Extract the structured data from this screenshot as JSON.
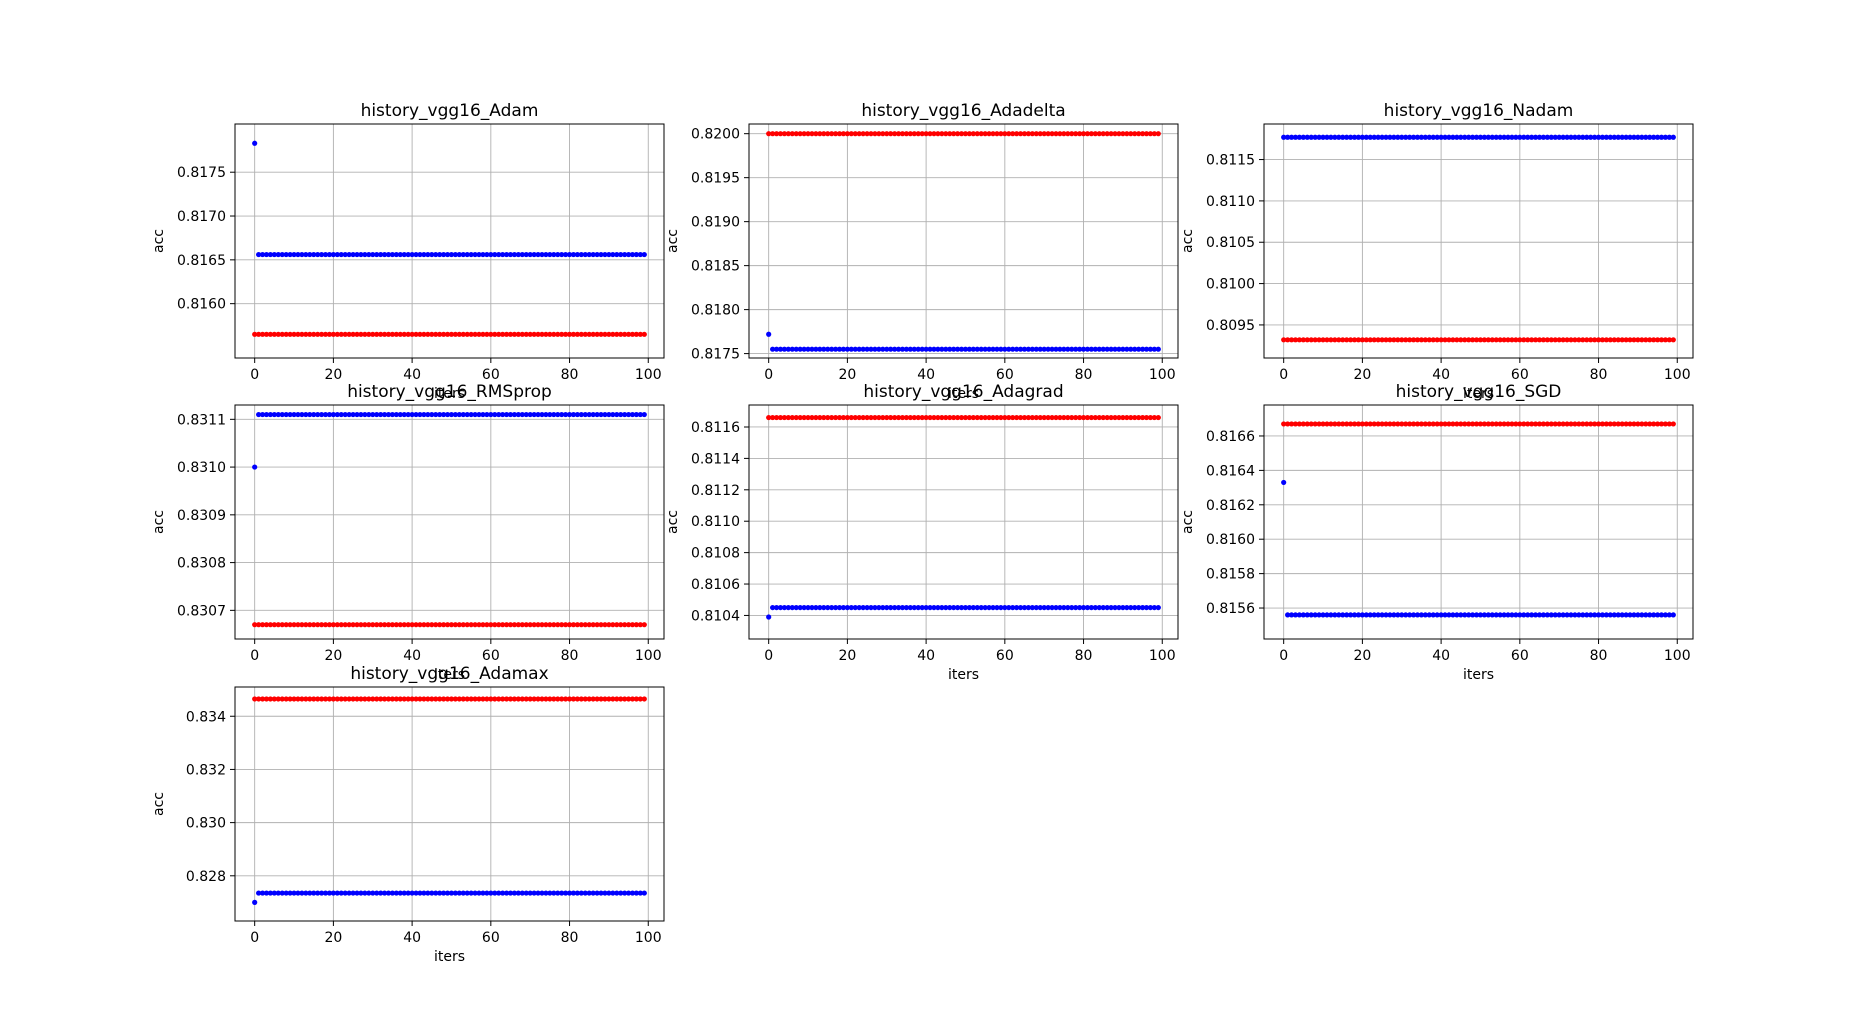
{
  "figure": {
    "colors": {
      "series_a": "#ff0000",
      "series_b": "#0000ff",
      "grid": "#b0b0b0",
      "axes": "#000000"
    }
  },
  "chart_data": [
    {
      "type": "scatter",
      "title": "history_vgg16_Adam",
      "xlabel": "iters",
      "ylabel": "acc",
      "xlim": [
        -5,
        104
      ],
      "ylim": [
        0.81538,
        0.81805
      ],
      "xticks": [
        0,
        20,
        40,
        60,
        80,
        100
      ],
      "xtick_labels": [
        "0",
        "20",
        "40",
        "60",
        "80",
        "100"
      ],
      "yticks": [
        0.816,
        0.8165,
        0.817,
        0.8175
      ],
      "ytick_labels": [
        "0.8160",
        "0.8165",
        "0.8170",
        "0.8175"
      ],
      "grid": true,
      "series": [
        {
          "color": "#ff0000",
          "x_range": [
            0,
            99
          ],
          "constant": 0.81565
        },
        {
          "color": "#0000ff",
          "x_range": [
            0,
            99
          ],
          "first": 0.81783,
          "constant": 0.81656
        }
      ]
    },
    {
      "type": "scatter",
      "title": "history_vgg16_Adadelta",
      "xlabel": "iters",
      "ylabel": "acc",
      "xlim": [
        -5,
        104
      ],
      "ylim": [
        0.81745,
        0.82011
      ],
      "xticks": [
        0,
        20,
        40,
        60,
        80,
        100
      ],
      "xtick_labels": [
        "0",
        "20",
        "40",
        "60",
        "80",
        "100"
      ],
      "yticks": [
        0.8175,
        0.818,
        0.8185,
        0.819,
        0.8195,
        0.82
      ],
      "ytick_labels": [
        "0.8175",
        "0.8180",
        "0.8185",
        "0.8190",
        "0.8195",
        "0.8200"
      ],
      "grid": true,
      "series": [
        {
          "color": "#ff0000",
          "x_range": [
            0,
            99
          ],
          "constant": 0.82
        },
        {
          "color": "#0000ff",
          "x_range": [
            0,
            99
          ],
          "first": 0.81772,
          "constant": 0.81755
        }
      ]
    },
    {
      "type": "scatter",
      "title": "history_vgg16_Nadam",
      "xlabel": "iters",
      "ylabel": "acc",
      "xlim": [
        -5,
        104
      ],
      "ylim": [
        0.8091,
        0.81193
      ],
      "xticks": [
        0,
        20,
        40,
        60,
        80,
        100
      ],
      "xtick_labels": [
        "0",
        "20",
        "40",
        "60",
        "80",
        "100"
      ],
      "yticks": [
        0.8095,
        0.81,
        0.8105,
        0.811,
        0.8115
      ],
      "ytick_labels": [
        "0.8095",
        "0.8100",
        "0.8105",
        "0.8110",
        "0.8115"
      ],
      "grid": true,
      "series": [
        {
          "color": "#ff0000",
          "x_range": [
            0,
            99
          ],
          "constant": 0.80932
        },
        {
          "color": "#0000ff",
          "x_range": [
            0,
            99
          ],
          "constant": 0.81177
        }
      ]
    },
    {
      "type": "scatter",
      "title": "history_vgg16_RMSprop",
      "xlabel": "iters",
      "ylabel": "acc",
      "xlim": [
        -5,
        104
      ],
      "ylim": [
        0.83064,
        0.83113
      ],
      "xticks": [
        0,
        20,
        40,
        60,
        80,
        100
      ],
      "xtick_labels": [
        "0",
        "20",
        "40",
        "60",
        "80",
        "100"
      ],
      "yticks": [
        0.8307,
        0.8308,
        0.8309,
        0.831,
        0.8311
      ],
      "ytick_labels": [
        "0.8307",
        "0.8308",
        "0.8309",
        "0.8310",
        "0.8311"
      ],
      "grid": true,
      "series": [
        {
          "color": "#ff0000",
          "x_range": [
            0,
            99
          ],
          "constant": 0.83067
        },
        {
          "color": "#0000ff",
          "x_range": [
            0,
            99
          ],
          "first": 0.831,
          "constant": 0.83111
        }
      ]
    },
    {
      "type": "scatter",
      "title": "history_vgg16_Adagrad",
      "xlabel": "iters",
      "ylabel": "acc",
      "xlim": [
        -5,
        104
      ],
      "ylim": [
        0.81025,
        0.81174
      ],
      "xticks": [
        0,
        20,
        40,
        60,
        80,
        100
      ],
      "xtick_labels": [
        "0",
        "20",
        "40",
        "60",
        "80",
        "100"
      ],
      "yticks": [
        0.8104,
        0.8106,
        0.8108,
        0.811,
        0.8112,
        0.8114,
        0.8116
      ],
      "ytick_labels": [
        "0.8104",
        "0.8106",
        "0.8108",
        "0.8110",
        "0.8112",
        "0.8114",
        "0.8116"
      ],
      "grid": true,
      "series": [
        {
          "color": "#ff0000",
          "x_range": [
            0,
            99
          ],
          "constant": 0.81166
        },
        {
          "color": "#0000ff",
          "x_range": [
            0,
            99
          ],
          "first": 0.81039,
          "constant": 0.81045
        }
      ]
    },
    {
      "type": "scatter",
      "title": "history_vgg16_SGD",
      "xlabel": "iters",
      "ylabel": "acc",
      "xlim": [
        -5,
        104
      ],
      "ylim": [
        0.81542,
        0.81678
      ],
      "xticks": [
        0,
        20,
        40,
        60,
        80,
        100
      ],
      "xtick_labels": [
        "0",
        "20",
        "40",
        "60",
        "80",
        "100"
      ],
      "yticks": [
        0.8156,
        0.8158,
        0.816,
        0.8162,
        0.8164,
        0.8166
      ],
      "ytick_labels": [
        "0.8156",
        "0.8158",
        "0.8160",
        "0.8162",
        "0.8164",
        "0.8166"
      ],
      "grid": true,
      "series": [
        {
          "color": "#ff0000",
          "x_range": [
            0,
            99
          ],
          "constant": 0.81667
        },
        {
          "color": "#0000ff",
          "x_range": [
            0,
            99
          ],
          "first": 0.81633,
          "constant": 0.81556
        }
      ]
    },
    {
      "type": "scatter",
      "title": "history_vgg16_Adamax",
      "xlabel": "iters",
      "ylabel": "acc",
      "xlim": [
        -5,
        104
      ],
      "ylim": [
        0.8263,
        0.8351
      ],
      "xticks": [
        0,
        20,
        40,
        60,
        80,
        100
      ],
      "xtick_labels": [
        "0",
        "20",
        "40",
        "60",
        "80",
        "100"
      ],
      "yticks": [
        0.828,
        0.83,
        0.832,
        0.834
      ],
      "ytick_labels": [
        "0.828",
        "0.830",
        "0.832",
        "0.834"
      ],
      "grid": true,
      "series": [
        {
          "color": "#ff0000",
          "x_range": [
            0,
            99
          ],
          "constant": 0.83465
        },
        {
          "color": "#0000ff",
          "x_range": [
            0,
            99
          ],
          "first": 0.827,
          "constant": 0.82735
        }
      ]
    }
  ]
}
